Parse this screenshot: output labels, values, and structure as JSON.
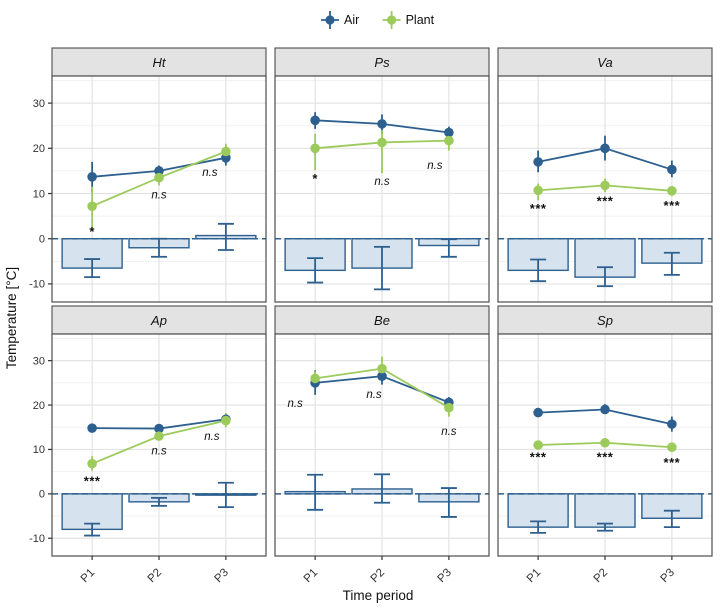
{
  "chart_data": {
    "type": "line",
    "description": "Faceted line chart (2x3 facets) of Air vs Plant temperature over three time periods, with difference bars around zero and significance annotations",
    "categories": [
      "P1",
      "P2",
      "P3"
    ],
    "xlabel": "Time period",
    "ylabel": "Temperature [°C]",
    "y_ticks": [
      30,
      20,
      10,
      0,
      -10
    ],
    "ylim": [
      -14,
      36
    ],
    "legend": {
      "position": "top-center",
      "items": [
        {
          "name": "Air",
          "color": "#2d608f"
        },
        {
          "name": "Plant",
          "color": "#9ccb5b"
        }
      ]
    },
    "colors": {
      "air": "#2d608f",
      "plant": "#9ccb5b",
      "bar_fill": "#d6e2ee",
      "bar_stroke": "#2d608f",
      "zero_line": "#2d608f"
    },
    "facets": [
      {
        "title": "Ht",
        "series": [
          {
            "name": "Air",
            "values": [
              13.7,
              15.0,
              17.9
            ],
            "lo": [
              10.3,
              13.8,
              16.2
            ],
            "hi": [
              17.0,
              16.2,
              19.6
            ]
          },
          {
            "name": "Plant",
            "values": [
              7.2,
              13.5,
              19.3
            ],
            "lo": [
              2.0,
              11.8,
              17.5
            ],
            "hi": [
              11.5,
              15.1,
              21.0
            ]
          }
        ],
        "bars": {
          "values": [
            -6.5,
            -2.0,
            0.7
          ],
          "lo": [
            -8.5,
            -4.0,
            -2.5
          ],
          "hi": [
            -4.5,
            0.0,
            3.3
          ]
        },
        "significance": [
          {
            "label": "*",
            "y": 1.5,
            "dx": 0
          },
          {
            "label": "n.s",
            "y": 9.8,
            "dx": 0
          },
          {
            "label": "n.s",
            "y": 14.8,
            "dx": -16
          }
        ]
      },
      {
        "title": "Ps",
        "series": [
          {
            "name": "Air",
            "values": [
              26.2,
              25.4,
              23.5
            ],
            "lo": [
              24.3,
              23.2,
              22.2
            ],
            "hi": [
              28.0,
              27.5,
              24.8
            ]
          },
          {
            "name": "Plant",
            "values": [
              20.0,
              21.3,
              21.7
            ],
            "lo": [
              15.2,
              14.5,
              19.5
            ],
            "hi": [
              23.2,
              24.0,
              23.5
            ]
          }
        ],
        "bars": {
          "values": [
            -7.0,
            -6.5,
            -1.5
          ],
          "lo": [
            -9.7,
            -11.2,
            -4.0
          ],
          "hi": [
            -4.3,
            -1.8,
            -0.1
          ]
        },
        "significance": [
          {
            "label": "*",
            "y": 13.2,
            "dx": 0
          },
          {
            "label": "n.s",
            "y": 12.8,
            "dx": 0
          },
          {
            "label": "n.s",
            "y": 16.3,
            "dx": -14
          }
        ]
      },
      {
        "title": "Va",
        "series": [
          {
            "name": "Air",
            "values": [
              17.0,
              20.0,
              15.3
            ],
            "lo": [
              14.7,
              17.3,
              13.6
            ],
            "hi": [
              19.5,
              22.8,
              17.3
            ]
          },
          {
            "name": "Plant",
            "values": [
              10.7,
              11.8,
              10.6
            ],
            "lo": [
              8.5,
              10.3,
              9.5
            ],
            "hi": [
              12.2,
              13.3,
              11.6
            ]
          }
        ],
        "bars": {
          "values": [
            -7.0,
            -8.5,
            -5.4
          ],
          "lo": [
            -9.4,
            -10.5,
            -8.0
          ],
          "hi": [
            -4.6,
            -6.3,
            -3.1
          ]
        },
        "significance": [
          {
            "label": "***",
            "y": 6.6,
            "dx": 0
          },
          {
            "label": "***",
            "y": 8.2,
            "dx": 0
          },
          {
            "label": "***",
            "y": 7.2,
            "dx": 0
          }
        ]
      },
      {
        "title": "Ap",
        "series": [
          {
            "name": "Air",
            "values": [
              14.8,
              14.7,
              16.8
            ],
            "lo": [
              14.2,
              14.0,
              15.8
            ],
            "hi": [
              15.4,
              15.4,
              18.0
            ]
          },
          {
            "name": "Plant",
            "values": [
              6.8,
              13.0,
              16.5
            ],
            "lo": [
              5.2,
              12.0,
              15.0
            ],
            "hi": [
              8.5,
              14.0,
              18.2
            ]
          }
        ],
        "bars": {
          "values": [
            -8.0,
            -1.8,
            -0.3
          ],
          "lo": [
            -9.4,
            -2.7,
            -3.0
          ],
          "hi": [
            -6.7,
            -0.9,
            2.5
          ]
        },
        "significance": [
          {
            "label": "***",
            "y": 2.8,
            "dx": 0
          },
          {
            "label": "n.s",
            "y": 9.8,
            "dx": 0
          },
          {
            "label": "n.s",
            "y": 13.0,
            "dx": -14
          }
        ]
      },
      {
        "title": "Be",
        "series": [
          {
            "name": "Air",
            "values": [
              25.0,
              26.5,
              20.6
            ],
            "lo": [
              22.3,
              24.6,
              19.4
            ],
            "hi": [
              27.8,
              28.4,
              21.8
            ]
          },
          {
            "name": "Plant",
            "values": [
              26.0,
              28.2,
              19.4
            ],
            "lo": [
              24.3,
              25.6,
              17.4
            ],
            "hi": [
              27.6,
              30.9,
              21.4
            ]
          }
        ],
        "bars": {
          "values": [
            0.5,
            1.1,
            -1.8
          ],
          "lo": [
            -3.6,
            -2.0,
            -5.2
          ],
          "hi": [
            4.3,
            4.4,
            1.3
          ]
        },
        "significance": [
          {
            "label": "n.s",
            "y": 20.5,
            "dx": -20
          },
          {
            "label": "n.s",
            "y": 22.5,
            "dx": -8
          },
          {
            "label": "n.s",
            "y": 14.2,
            "dx": 0
          }
        ]
      },
      {
        "title": "Sp",
        "series": [
          {
            "name": "Air",
            "values": [
              18.3,
              19.0,
              15.7
            ],
            "lo": [
              17.6,
              18.0,
              14.0
            ],
            "hi": [
              19.0,
              20.2,
              17.4
            ]
          },
          {
            "name": "Plant",
            "values": [
              11.0,
              11.5,
              10.5
            ],
            "lo": [
              10.3,
              10.8,
              9.7
            ],
            "hi": [
              11.7,
              12.2,
              11.3
            ]
          }
        ],
        "bars": {
          "values": [
            -7.5,
            -7.5,
            -5.5
          ],
          "lo": [
            -8.8,
            -8.3,
            -7.5
          ],
          "hi": [
            -6.2,
            -6.7,
            -3.8
          ]
        },
        "significance": [
          {
            "label": "***",
            "y": 8.2,
            "dx": 0
          },
          {
            "label": "***",
            "y": 8.2,
            "dx": 0
          },
          {
            "label": "***",
            "y": 7.0,
            "dx": 0
          }
        ]
      }
    ]
  }
}
